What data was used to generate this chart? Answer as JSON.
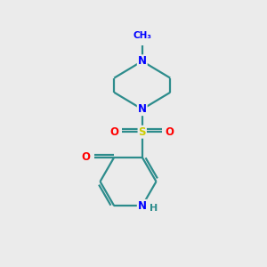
{
  "background_color": "#ebebeb",
  "atom_colors": {
    "C": "#2d8c8c",
    "N": "#0000ff",
    "O": "#ff0000",
    "S": "#cccc00",
    "H": "#2d8c8c"
  },
  "bond_color": "#2d8c8c",
  "bond_width": 1.6,
  "font_size_atom": 8.5,
  "fig_width": 3.0,
  "fig_height": 3.0,
  "dpi": 100
}
